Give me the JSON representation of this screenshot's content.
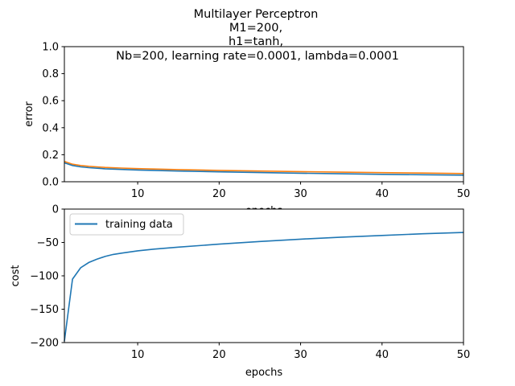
{
  "figure": {
    "title_lines": [
      "Multilayer Perceptron",
      "M1=200,",
      "h1=tanh,",
      "Nb=200, learning rate=0.0001, lambda=0.0001"
    ]
  },
  "chart_data": [
    {
      "type": "line",
      "xlabel": "epochs",
      "ylabel": "error",
      "xlim": [
        1,
        50
      ],
      "ylim": [
        0,
        1
      ],
      "xticks": [
        10,
        20,
        30,
        40,
        50
      ],
      "yticks": [
        0.0,
        0.2,
        0.4,
        0.6,
        0.8,
        1.0
      ],
      "ytick_labels": [
        "0.0",
        "0.2",
        "0.4",
        "0.6",
        "0.8",
        "1.0"
      ],
      "grid": false,
      "series": [
        {
          "color": "#ff7f0e",
          "x": [
            1,
            2,
            3,
            4,
            5,
            6,
            8,
            10,
            15,
            20,
            25,
            30,
            35,
            40,
            45,
            50
          ],
          "y": [
            0.15,
            0.13,
            0.12,
            0.114,
            0.11,
            0.106,
            0.101,
            0.097,
            0.09,
            0.084,
            0.079,
            0.075,
            0.071,
            0.067,
            0.064,
            0.061
          ]
        },
        {
          "color": "#1f77b4",
          "x": [
            1,
            2,
            3,
            4,
            5,
            6,
            8,
            10,
            15,
            20,
            25,
            30,
            35,
            40,
            45,
            50
          ],
          "y": [
            0.14,
            0.12,
            0.11,
            0.104,
            0.1,
            0.096,
            0.091,
            0.087,
            0.079,
            0.073,
            0.068,
            0.063,
            0.059,
            0.055,
            0.052,
            0.049
          ]
        }
      ]
    },
    {
      "type": "line",
      "xlabel": "epochs",
      "ylabel": "cost",
      "xlim": [
        1,
        50
      ],
      "ylim": [
        -200,
        0
      ],
      "xticks": [
        10,
        20,
        30,
        40,
        50
      ],
      "yticks": [
        0,
        -50,
        -100,
        -150,
        -200
      ],
      "ytick_labels": [
        "0",
        "−50",
        "−100",
        "−150",
        "−200"
      ],
      "grid": false,
      "legend": {
        "position": "top-left"
      },
      "series": [
        {
          "name": "training data",
          "color": "#1f77b4",
          "x": [
            1,
            2,
            3,
            4,
            5,
            6,
            7,
            8,
            10,
            12,
            15,
            20,
            25,
            30,
            35,
            40,
            45,
            50
          ],
          "y": [
            -198,
            -105,
            -88,
            -80,
            -75,
            -71,
            -68,
            -66,
            -62.5,
            -60,
            -57,
            -52.5,
            -48.5,
            -45,
            -42,
            -39.5,
            -37,
            -35
          ]
        }
      ]
    }
  ]
}
